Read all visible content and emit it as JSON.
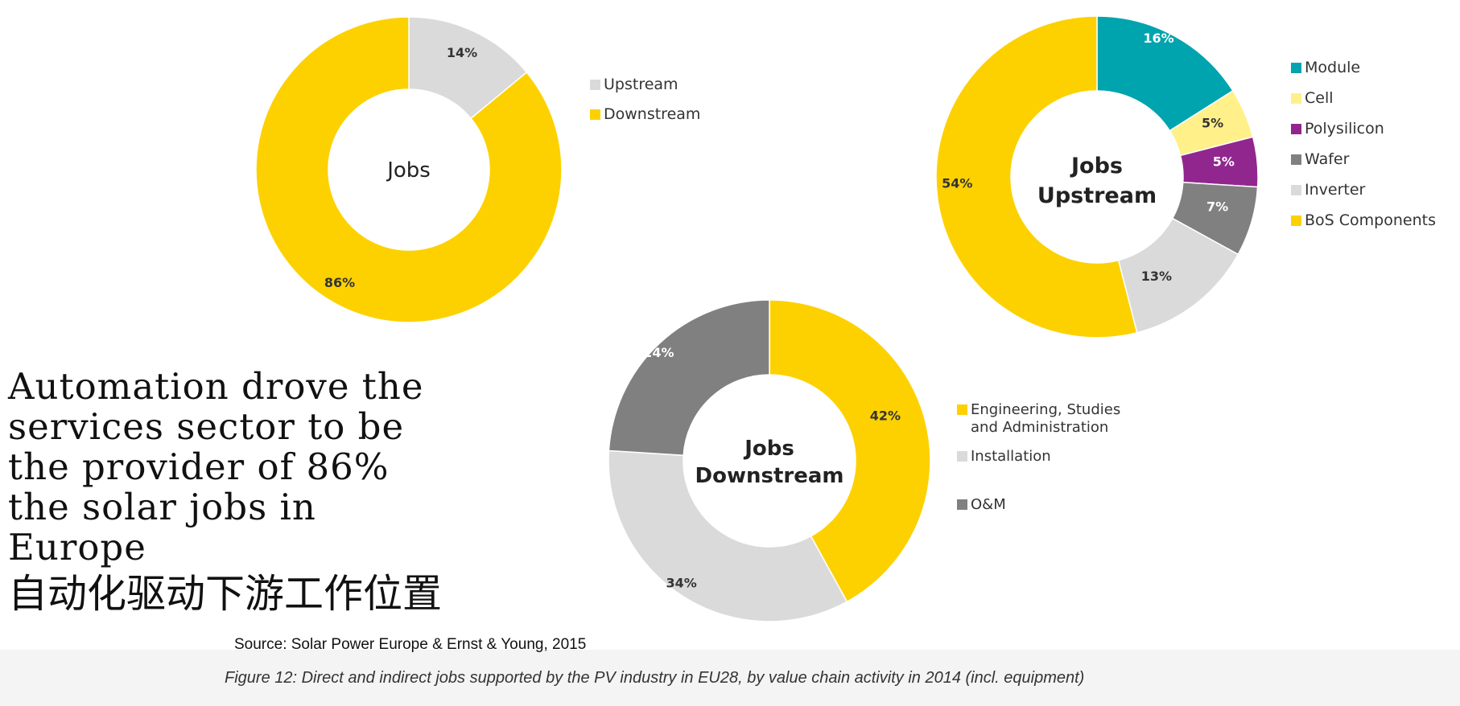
{
  "colors": {
    "yellow": "#FDD100",
    "light_gray": "#DADADA",
    "teal": "#00A4AE",
    "pale_yellow": "#FFF08A",
    "purple": "#91268F",
    "dark_gray": "#808080",
    "text": "#222222"
  },
  "headline": {
    "en_lines": [
      "Automation drove the",
      "services sector to be",
      "the provider of 86%",
      "the solar jobs in",
      "Europe"
    ],
    "zh": "自动化驱动下游工作位置"
  },
  "source": "Source: Solar Power Europe & Ernst & Young, 2015",
  "figure_caption": "Figure 12: Direct and indirect jobs supported by the PV industry in EU28, by value chain activity in 2014 (incl. equipment)",
  "chart_data": [
    {
      "type": "pie",
      "donut": true,
      "center_label": [
        "Jobs"
      ],
      "legend_position": "right",
      "slices": [
        {
          "label": "Upstream",
          "value": 14,
          "display": "14%",
          "color": "#DADADA"
        },
        {
          "label": "Downstream",
          "value": 86,
          "display": "86%",
          "color": "#FDD100"
        }
      ]
    },
    {
      "type": "pie",
      "donut": true,
      "center_label": [
        "Jobs",
        "Upstream"
      ],
      "legend_position": "right",
      "slices": [
        {
          "label": "Module",
          "value": 16,
          "display": "16%",
          "color": "#00A4AE"
        },
        {
          "label": "Cell",
          "value": 5,
          "display": "5%",
          "color": "#FFF08A"
        },
        {
          "label": "Polysilicon",
          "value": 5,
          "display": "5%",
          "color": "#91268F"
        },
        {
          "label": "Wafer",
          "value": 7,
          "display": "7%",
          "color": "#808080"
        },
        {
          "label": "Inverter",
          "value": 13,
          "display": "13%",
          "color": "#DADADA"
        },
        {
          "label": "BoS Components",
          "value": 54,
          "display": "54%",
          "color": "#FDD100"
        }
      ]
    },
    {
      "type": "pie",
      "donut": true,
      "center_label": [
        "Jobs",
        "Downstream"
      ],
      "legend_position": "right",
      "slices": [
        {
          "label": "Engineering, Studies and Administration",
          "legend_lines": [
            "Engineering, Studies",
            "and Administration"
          ],
          "value": 42,
          "display": "42%",
          "color": "#FDD100"
        },
        {
          "label": "Installation",
          "legend_lines": [
            "Installation"
          ],
          "value": 34,
          "display": "34%",
          "color": "#DADADA"
        },
        {
          "label": "O&M",
          "legend_lines": [
            "O&M"
          ],
          "value": 24,
          "display": "24%",
          "color": "#808080"
        }
      ]
    }
  ]
}
